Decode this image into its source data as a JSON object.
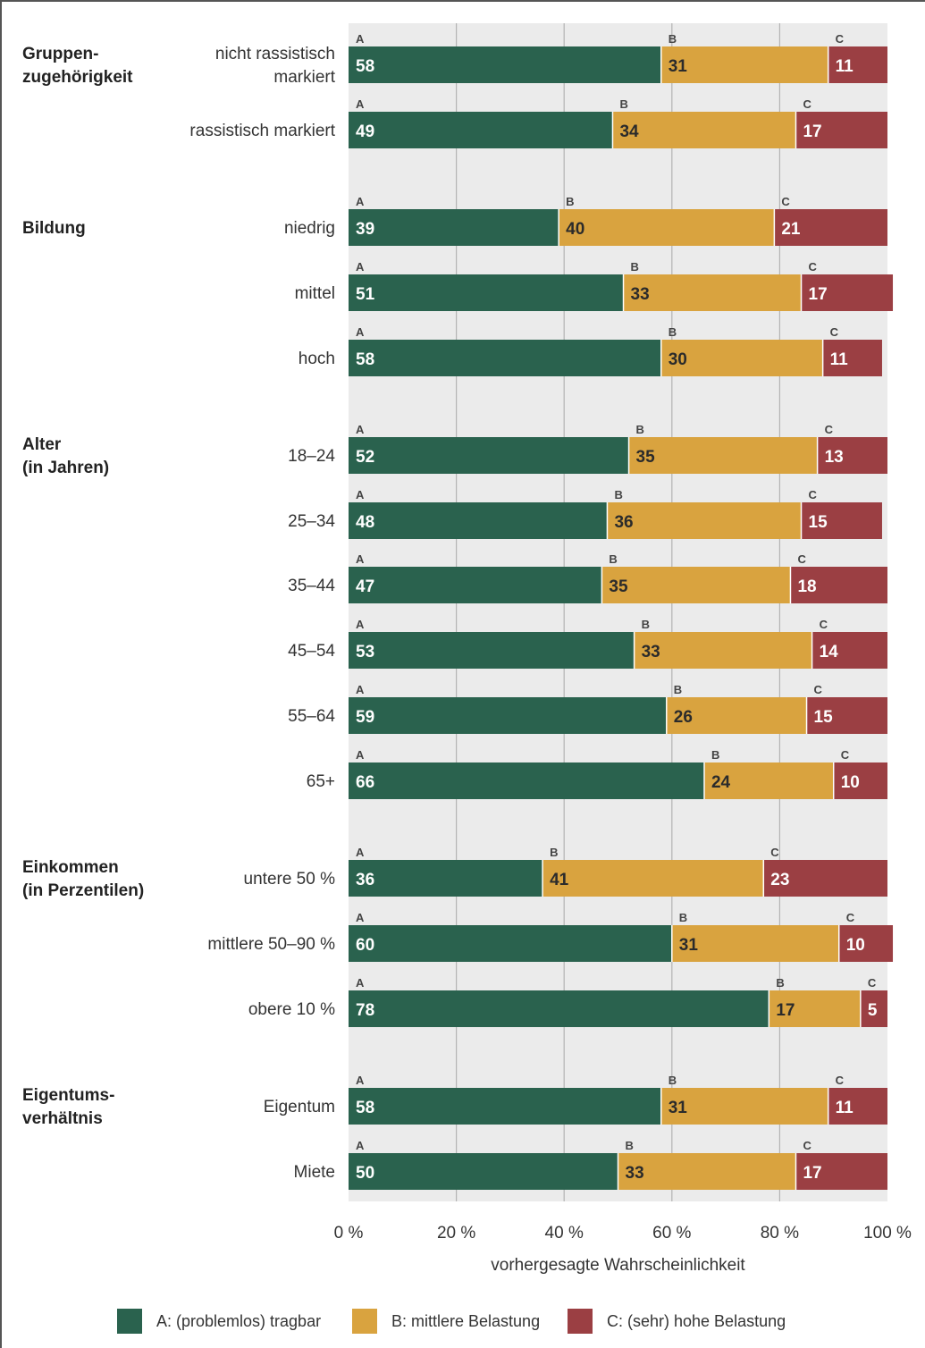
{
  "chart_data": {
    "type": "bar",
    "stacked": true,
    "orientation": "horizontal",
    "xlabel": "vorhergesagte Wahrscheinlichkeit",
    "xlim": [
      0,
      100
    ],
    "x_ticks": [
      "0 %",
      "20 %",
      "40 %",
      "60 %",
      "80 %",
      "100 %"
    ],
    "grid": true,
    "legend_position": "bottom",
    "series": [
      {
        "key": "A",
        "name": "A: (problemlos) tragbar",
        "color": "#2a624e"
      },
      {
        "key": "B",
        "name": "B: mittlere Belastung",
        "color": "#d9a33f"
      },
      {
        "key": "C",
        "name": "C: (sehr) hohe Belastung",
        "color": "#9b3f43"
      }
    ],
    "groups": [
      {
        "label": [
          "Gruppen-",
          "zugehörigkeit"
        ],
        "rows": [
          {
            "label": [
              "nicht rassistisch",
              "markiert"
            ],
            "values": [
              58,
              31,
              11
            ]
          },
          {
            "label": [
              "rassistisch markiert"
            ],
            "values": [
              49,
              34,
              17
            ]
          }
        ]
      },
      {
        "label": [
          "Bildung"
        ],
        "rows": [
          {
            "label": [
              "niedrig"
            ],
            "values": [
              39,
              40,
              21
            ]
          },
          {
            "label": [
              "mittel"
            ],
            "values": [
              51,
              33,
              17
            ]
          },
          {
            "label": [
              "hoch"
            ],
            "values": [
              58,
              30,
              11
            ]
          }
        ]
      },
      {
        "label": [
          "Alter",
          "(in Jahren)"
        ],
        "rows": [
          {
            "label": [
              "18–24"
            ],
            "values": [
              52,
              35,
              13
            ]
          },
          {
            "label": [
              "25–34"
            ],
            "values": [
              48,
              36,
              15
            ]
          },
          {
            "label": [
              "35–44"
            ],
            "values": [
              47,
              35,
              18
            ]
          },
          {
            "label": [
              "45–54"
            ],
            "values": [
              53,
              33,
              14
            ]
          },
          {
            "label": [
              "55–64"
            ],
            "values": [
              59,
              26,
              15
            ]
          },
          {
            "label": [
              "65+"
            ],
            "values": [
              66,
              24,
              10
            ]
          }
        ]
      },
      {
        "label": [
          "Einkommen",
          "(in Perzentilen)"
        ],
        "rows": [
          {
            "label": [
              "untere 50 %"
            ],
            "values": [
              36,
              41,
              23
            ]
          },
          {
            "label": [
              "mittlere 50–90 %"
            ],
            "values": [
              60,
              31,
              10
            ]
          },
          {
            "label": [
              "obere 10 %"
            ],
            "values": [
              78,
              17,
              5
            ]
          }
        ]
      },
      {
        "label": [
          "Eigentums-",
          "verhältnis"
        ],
        "rows": [
          {
            "label": [
              "Eigentum"
            ],
            "values": [
              58,
              31,
              11
            ]
          },
          {
            "label": [
              "Miete"
            ],
            "values": [
              50,
              33,
              17
            ]
          }
        ]
      }
    ]
  }
}
